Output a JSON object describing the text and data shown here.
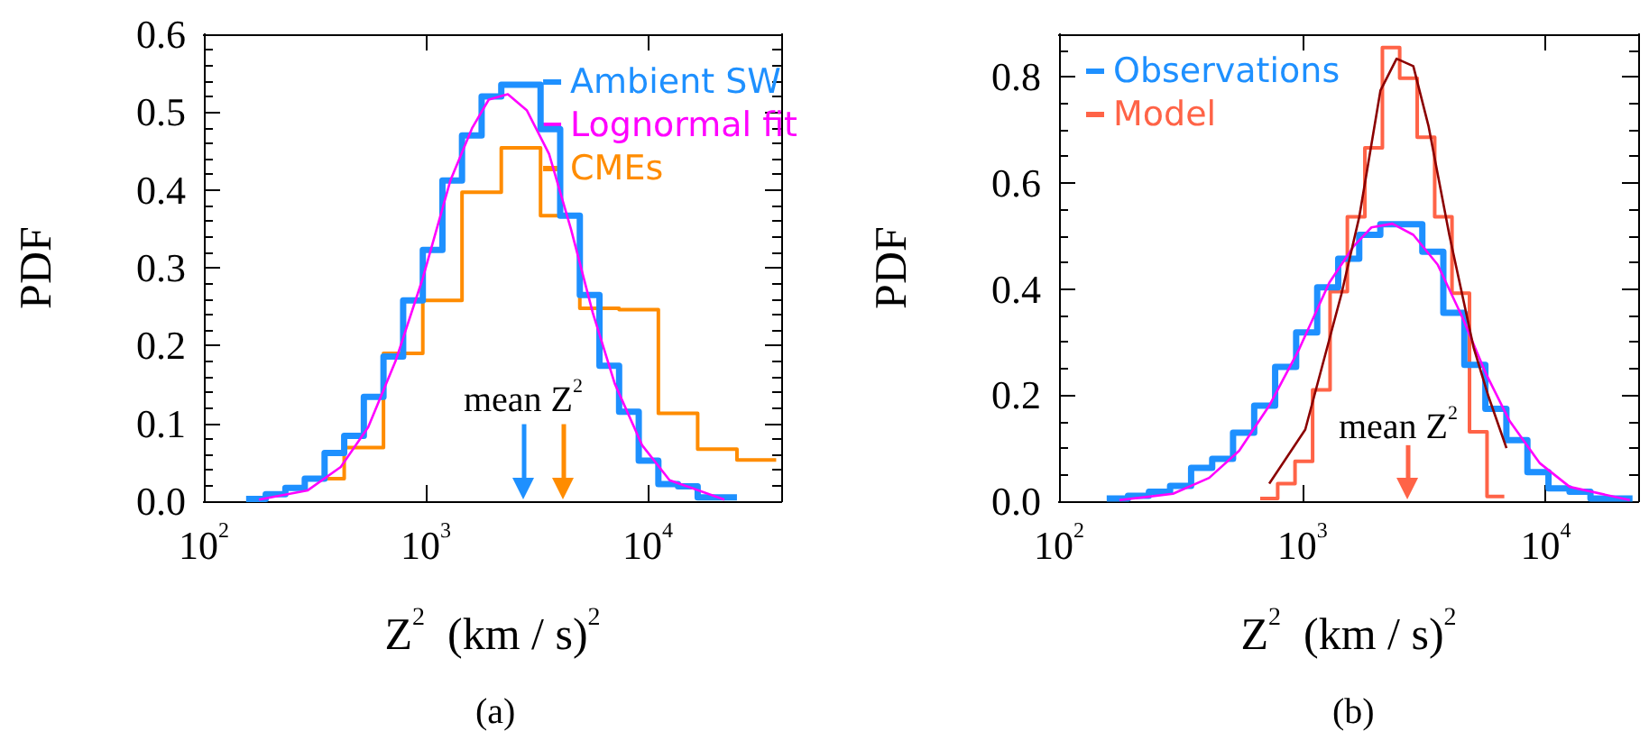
{
  "chart_data": [
    {
      "type": "histogram",
      "title": "(a)",
      "xlabel": "Z$^{2}$  (km / s)$^{2}$",
      "ylabel": "PDF",
      "log": "x",
      "xlim": [
        100,
        40000
      ],
      "xticks": [
        {
          "value": 100,
          "label": "10$^{2}$"
        },
        {
          "value": 1000,
          "label": "10$^{3}$"
        },
        {
          "value": 10000,
          "label": "10$^{4}$"
        }
      ],
      "ylim": [
        0,
        0.6
      ],
      "yticks": [
        {
          "value": 0,
          "label": "0.0"
        },
        0.1,
        0.2,
        0.3,
        0.4,
        0.5,
        0.6
      ],
      "legend": "top right",
      "series": [
        {
          "name": "Ambient SW",
          "color": "#1e90ff",
          "bins": [
            155,
            190,
            233,
            285,
            350,
            429,
            526,
            645,
            791,
            970,
            1189,
            1457,
            1786,
            2190,
            2685,
            3292,
            4036,
            4948,
            6067,
            7438,
            9120,
            11180,
            13710,
            16810,
            20610,
            25270
          ],
          "values": [
            0.003,
            0.009,
            0.017,
            0.029,
            0.062,
            0.084,
            0.134,
            0.186,
            0.258,
            0.323,
            0.412,
            0.47,
            0.52,
            0.535,
            0.535,
            0.478,
            0.367,
            0.265,
            0.174,
            0.115,
            0.052,
            0.022,
            0.019,
            0.005,
            0.005
          ]
        },
        {
          "name": "Lognormal fit",
          "type": "line",
          "color": "#ff00ff",
          "x": [
            177,
            294,
            414,
            550,
            731,
            971,
            1291,
            1622,
            1923,
            2344,
            2858,
            3597,
            4511,
            5662,
            7112,
            9441,
            12560,
            22180
          ],
          "values": [
            0.002,
            0.014,
            0.044,
            0.095,
            0.18,
            0.287,
            0.412,
            0.48,
            0.516,
            0.523,
            0.502,
            0.446,
            0.35,
            0.242,
            0.151,
            0.072,
            0.027,
            0.002
          ]
        },
        {
          "name": "CMEs",
          "color": "#ff8c00",
          "bins": [
            350,
            429,
            645,
            970,
            1457,
            2190,
            3292,
            4948,
            7438,
            11180,
            16810,
            25270,
            37970
          ],
          "values": [
            0.029,
            0.069,
            0.19,
            0.258,
            0.397,
            0.454,
            0.367,
            0.248,
            0.246,
            0.113,
            0.067,
            0.053
          ]
        }
      ],
      "ref_lines": [
        {
          "axis": "x",
          "value": 2750,
          "color": "#1e90ff"
        },
        {
          "axis": "x",
          "value": 4150,
          "color": "#ff8c00"
        }
      ],
      "annotations": [
        "mean Z$^{2}$"
      ]
    },
    {
      "type": "histogram",
      "title": "(b)",
      "xlabel": "Z$^{2}$  (km / s)$^{2}$",
      "ylabel": "PDF",
      "log": "x",
      "xlim": [
        100,
        24000
      ],
      "xticks": [
        {
          "value": 100,
          "label": "10$^{2}$"
        },
        {
          "value": 1000,
          "label": "10$^{3}$"
        },
        {
          "value": 10000,
          "label": "10$^{4}$"
        }
      ],
      "ylim": [
        0,
        0.88
      ],
      "yticks": [
        {
          "value": 0,
          "label": "0.0"
        },
        0.2,
        0.4,
        0.6,
        0.8
      ],
      "legend": "top left",
      "series": [
        {
          "name": "Observations",
          "color": "#1e90ff",
          "bins": [
            157,
            192,
            234,
            286,
            349,
            426,
            519,
            634,
            773,
            943,
            1151,
            1404,
            1713,
            2091,
            2551,
            3112,
            3797,
            4633,
            5652,
            6896,
            8414,
            10270,
            12530,
            15280,
            18650,
            22750
          ],
          "values": [
            0.005,
            0.01,
            0.018,
            0.029,
            0.063,
            0.08,
            0.129,
            0.18,
            0.253,
            0.318,
            0.403,
            0.457,
            0.502,
            0.522,
            0.522,
            0.47,
            0.355,
            0.257,
            0.174,
            0.115,
            0.055,
            0.024,
            0.018,
            0.005,
            0.005
          ]
        },
        {
          "type": "line",
          "color": "#ff00ff",
          "x": [
            177,
            294,
            414,
            550,
            731,
            971,
            1291,
            1622,
            1923,
            2344,
            2858,
            3597,
            4511,
            5662,
            7112,
            9441,
            12560,
            22180
          ],
          "values": [
            0.002,
            0.014,
            0.044,
            0.095,
            0.18,
            0.287,
            0.412,
            0.48,
            0.516,
            0.523,
            0.502,
            0.446,
            0.35,
            0.242,
            0.151,
            0.072,
            0.027,
            0.002
          ]
        },
        {
          "name": "Model",
          "color": "#ff6347",
          "bins": [
            671,
            792,
            933,
            1102,
            1300,
            1531,
            1807,
            2133,
            2512,
            2965,
            3499,
            4121,
            4864,
            5741,
            6761
          ],
          "values": [
            0.005,
            0.033,
            0.075,
            0.21,
            0.395,
            0.536,
            0.666,
            0.855,
            0.797,
            0.686,
            0.536,
            0.392,
            0.131,
            0.009
          ]
        },
        {
          "type": "line",
          "color": "#8b0000",
          "x": [
            731,
            1028,
            1445,
            1714,
            2094,
            2440,
            2858,
            3304,
            4018,
            5055,
            5825,
            6902
          ],
          "values": [
            0.033,
            0.135,
            0.389,
            0.536,
            0.774,
            0.834,
            0.82,
            0.706,
            0.502,
            0.29,
            0.197,
            0.1
          ]
        }
      ],
      "ref_lines": [
        {
          "axis": "x",
          "value": 2700,
          "color": "#ff6347"
        }
      ],
      "annotations": [
        "mean Z$^{2}$"
      ]
    }
  ]
}
